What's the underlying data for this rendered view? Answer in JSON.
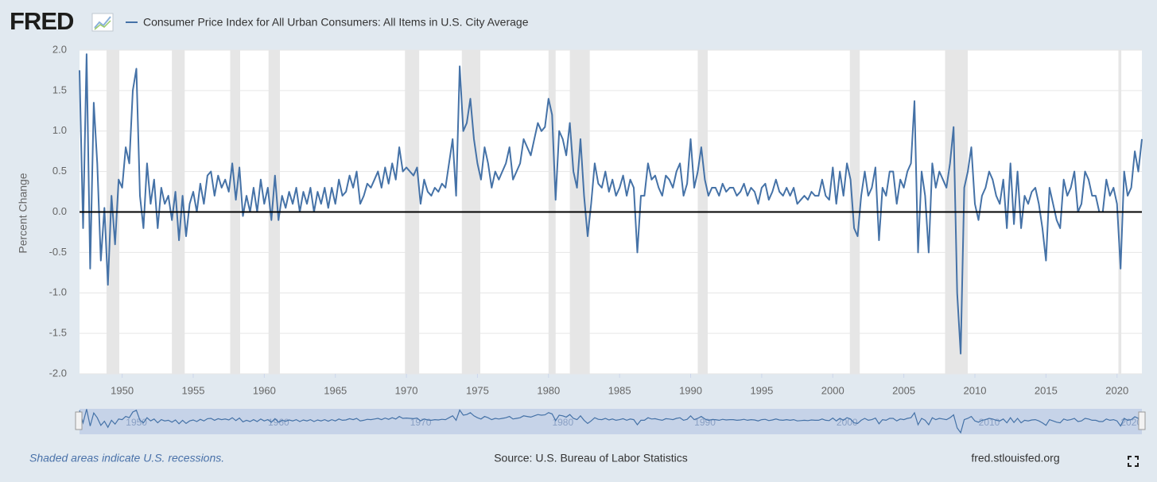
{
  "chart_data": {
    "type": "line",
    "logo": "FRED",
    "title": "Consumer Price Index for All Urban Consumers: All Items in U.S. City Average",
    "y_label": "Percent Change",
    "note": "Shaded areas indicate U.S. recessions.",
    "source": "Source: U.S. Bureau of Labor Statistics",
    "site": "fred.stlouisfed.org",
    "xlim": [
      1947.0,
      2021.75
    ],
    "ylim": [
      -2.0,
      2.0
    ],
    "xticks": [
      1950,
      1955,
      1960,
      1965,
      1970,
      1975,
      1980,
      1985,
      1990,
      1995,
      2000,
      2005,
      2010,
      2015,
      2020
    ],
    "yticks": [
      {
        "value": 2.0,
        "label": "2.0"
      },
      {
        "value": 1.5,
        "label": "1.5"
      },
      {
        "value": 1.0,
        "label": "1.0"
      },
      {
        "value": 0.5,
        "label": "0.5"
      },
      {
        "value": 0,
        "label": "0.0"
      },
      {
        "value": -0.5,
        "label": "-0.5"
      },
      {
        "value": -1.0,
        "label": "-1.0"
      },
      {
        "value": -1.5,
        "label": "-1.5"
      },
      {
        "value": -2.0,
        "label": "-2.0"
      }
    ],
    "grid": true,
    "zero_line": true,
    "recessions": [
      [
        1948.9,
        1949.8
      ],
      [
        1953.5,
        1954.4
      ],
      [
        1957.6,
        1958.3
      ],
      [
        1960.3,
        1961.1
      ],
      [
        1969.9,
        1970.9
      ],
      [
        1973.9,
        1975.2
      ],
      [
        1980.0,
        1980.5
      ],
      [
        1981.5,
        1982.9
      ],
      [
        1990.5,
        1991.2
      ],
      [
        2001.2,
        2001.9
      ],
      [
        2007.9,
        2009.5
      ],
      [
        2020.1,
        2020.3
      ]
    ],
    "recession_color": "#e6e6e6",
    "x": [
      1947.0,
      1947.25,
      1947.5,
      1947.75,
      1948.0,
      1948.25,
      1948.5,
      1948.75,
      1949.0,
      1949.25,
      1949.5,
      1949.75,
      1950.0,
      1950.25,
      1950.5,
      1950.75,
      1951.0,
      1951.25,
      1951.5,
      1951.75,
      1952.0,
      1952.25,
      1952.5,
      1952.75,
      1953.0,
      1953.25,
      1953.5,
      1953.75,
      1954.0,
      1954.25,
      1954.5,
      1954.75,
      1955.0,
      1955.25,
      1955.5,
      1955.75,
      1956.0,
      1956.25,
      1956.5,
      1956.75,
      1957.0,
      1957.25,
      1957.5,
      1957.75,
      1958.0,
      1958.25,
      1958.5,
      1958.75,
      1959.0,
      1959.25,
      1959.5,
      1959.75,
      1960.0,
      1960.25,
      1960.5,
      1960.75,
      1961.0,
      1961.25,
      1961.5,
      1961.75,
      1962.0,
      1962.25,
      1962.5,
      1962.75,
      1963.0,
      1963.25,
      1963.5,
      1963.75,
      1964.0,
      1964.25,
      1964.5,
      1964.75,
      1965.0,
      1965.25,
      1965.5,
      1965.75,
      1966.0,
      1966.25,
      1966.5,
      1966.75,
      1967.0,
      1967.25,
      1967.5,
      1967.75,
      1968.0,
      1968.25,
      1968.5,
      1968.75,
      1969.0,
      1969.25,
      1969.5,
      1969.75,
      1970.0,
      1970.25,
      1970.5,
      1970.75,
      1971.0,
      1971.25,
      1971.5,
      1971.75,
      1972.0,
      1972.25,
      1972.5,
      1972.75,
      1973.0,
      1973.25,
      1973.5,
      1973.75,
      1974.0,
      1974.25,
      1974.5,
      1974.75,
      1975.0,
      1975.25,
      1975.5,
      1975.75,
      1976.0,
      1976.25,
      1976.5,
      1976.75,
      1977.0,
      1977.25,
      1977.5,
      1977.75,
      1978.0,
      1978.25,
      1978.5,
      1978.75,
      1979.0,
      1979.25,
      1979.5,
      1979.75,
      1980.0,
      1980.25,
      1980.5,
      1980.75,
      1981.0,
      1981.25,
      1981.5,
      1981.75,
      1982.0,
      1982.25,
      1982.5,
      1982.75,
      1983.0,
      1983.25,
      1983.5,
      1983.75,
      1984.0,
      1984.25,
      1984.5,
      1984.75,
      1985.0,
      1985.25,
      1985.5,
      1985.75,
      1986.0,
      1986.25,
      1986.5,
      1986.75,
      1987.0,
      1987.25,
      1987.5,
      1987.75,
      1988.0,
      1988.25,
      1988.5,
      1988.75,
      1989.0,
      1989.25,
      1989.5,
      1989.75,
      1990.0,
      1990.25,
      1990.5,
      1990.75,
      1991.0,
      1991.25,
      1991.5,
      1991.75,
      1992.0,
      1992.25,
      1992.5,
      1992.75,
      1993.0,
      1993.25,
      1993.5,
      1993.75,
      1994.0,
      1994.25,
      1994.5,
      1994.75,
      1995.0,
      1995.25,
      1995.5,
      1995.75,
      1996.0,
      1996.25,
      1996.5,
      1996.75,
      1997.0,
      1997.25,
      1997.5,
      1997.75,
      1998.0,
      1998.25,
      1998.5,
      1998.75,
      1999.0,
      1999.25,
      1999.5,
      1999.75,
      2000.0,
      2000.25,
      2000.5,
      2000.75,
      2001.0,
      2001.25,
      2001.5,
      2001.75,
      2002.0,
      2002.25,
      2002.5,
      2002.75,
      2003.0,
      2003.25,
      2003.5,
      2003.75,
      2004.0,
      2004.25,
      2004.5,
      2004.75,
      2005.0,
      2005.25,
      2005.5,
      2005.75,
      2006.0,
      2006.25,
      2006.5,
      2006.75,
      2007.0,
      2007.25,
      2007.5,
      2007.75,
      2008.0,
      2008.25,
      2008.5,
      2008.75,
      2009.0,
      2009.25,
      2009.5,
      2009.75,
      2010.0,
      2010.25,
      2010.5,
      2010.75,
      2011.0,
      2011.25,
      2011.5,
      2011.75,
      2012.0,
      2012.25,
      2012.5,
      2012.75,
      2013.0,
      2013.25,
      2013.5,
      2013.75,
      2014.0,
      2014.25,
      2014.5,
      2014.75,
      2015.0,
      2015.25,
      2015.5,
      2015.75,
      2016.0,
      2016.25,
      2016.5,
      2016.75,
      2017.0,
      2017.25,
      2017.5,
      2017.75,
      2018.0,
      2018.25,
      2018.5,
      2018.75,
      2019.0,
      2019.25,
      2019.5,
      2019.75,
      2020.0,
      2020.25,
      2020.5,
      2020.75,
      2021.0,
      2021.25,
      2021.5,
      2021.75
    ],
    "series": [
      {
        "name": "Consumer Price Index for All Urban Consumers: All Items in U.S. City Average",
        "color": "#4572a7",
        "values": [
          1.75,
          -0.2,
          1.95,
          -0.7,
          1.35,
          0.6,
          -0.6,
          0.05,
          -0.9,
          0.2,
          -0.4,
          0.4,
          0.3,
          0.8,
          0.6,
          1.5,
          1.77,
          0.2,
          -0.2,
          0.6,
          0.1,
          0.4,
          -0.2,
          0.3,
          0.1,
          0.2,
          -0.1,
          0.25,
          -0.35,
          0.2,
          -0.3,
          0.1,
          0.25,
          0.0,
          0.35,
          0.1,
          0.45,
          0.5,
          0.2,
          0.45,
          0.3,
          0.4,
          0.25,
          0.6,
          0.15,
          0.55,
          -0.05,
          0.2,
          0.0,
          0.3,
          0.0,
          0.4,
          0.1,
          0.3,
          -0.1,
          0.45,
          -0.1,
          0.2,
          0.05,
          0.25,
          0.1,
          0.3,
          0.0,
          0.25,
          0.1,
          0.3,
          0.0,
          0.25,
          0.1,
          0.3,
          0.05,
          0.3,
          0.1,
          0.4,
          0.2,
          0.25,
          0.45,
          0.3,
          0.5,
          0.1,
          0.2,
          0.35,
          0.3,
          0.4,
          0.5,
          0.3,
          0.55,
          0.35,
          0.6,
          0.4,
          0.8,
          0.5,
          0.55,
          0.5,
          0.45,
          0.55,
          0.1,
          0.4,
          0.25,
          0.2,
          0.3,
          0.25,
          0.35,
          0.3,
          0.6,
          0.9,
          0.2,
          1.8,
          1.0,
          1.1,
          1.4,
          0.9,
          0.6,
          0.4,
          0.8,
          0.6,
          0.3,
          0.5,
          0.4,
          0.5,
          0.6,
          0.8,
          0.4,
          0.5,
          0.6,
          0.9,
          0.8,
          0.7,
          0.9,
          1.1,
          1.0,
          1.05,
          1.4,
          1.2,
          0.15,
          1.0,
          0.9,
          0.7,
          1.1,
          0.5,
          0.3,
          0.9,
          0.2,
          -0.3,
          0.1,
          0.6,
          0.35,
          0.3,
          0.5,
          0.25,
          0.4,
          0.2,
          0.3,
          0.45,
          0.2,
          0.4,
          0.3,
          -0.5,
          0.2,
          0.2,
          0.6,
          0.4,
          0.45,
          0.3,
          0.2,
          0.45,
          0.4,
          0.3,
          0.5,
          0.6,
          0.2,
          0.35,
          0.9,
          0.3,
          0.5,
          0.8,
          0.4,
          0.2,
          0.3,
          0.3,
          0.2,
          0.35,
          0.25,
          0.3,
          0.3,
          0.2,
          0.25,
          0.35,
          0.2,
          0.3,
          0.25,
          0.1,
          0.3,
          0.35,
          0.15,
          0.25,
          0.4,
          0.25,
          0.2,
          0.3,
          0.2,
          0.3,
          0.1,
          0.15,
          0.2,
          0.15,
          0.25,
          0.2,
          0.2,
          0.4,
          0.2,
          0.15,
          0.55,
          0.1,
          0.5,
          0.2,
          0.6,
          0.4,
          -0.2,
          -0.3,
          0.2,
          0.5,
          0.2,
          0.3,
          0.55,
          -0.35,
          0.3,
          0.2,
          0.5,
          0.5,
          0.1,
          0.4,
          0.3,
          0.5,
          0.6,
          1.37,
          -0.5,
          0.5,
          0.2,
          -0.5,
          0.6,
          0.3,
          0.5,
          0.4,
          0.3,
          0.6,
          1.05,
          -1.0,
          -1.75,
          0.3,
          0.5,
          0.8,
          0.1,
          -0.1,
          0.2,
          0.3,
          0.5,
          0.4,
          0.2,
          0.1,
          0.4,
          -0.2,
          0.6,
          -0.15,
          0.5,
          -0.2,
          0.2,
          0.1,
          0.25,
          0.3,
          0.1,
          -0.2,
          -0.6,
          0.3,
          0.1,
          -0.1,
          -0.2,
          0.4,
          0.2,
          0.3,
          0.5,
          0.0,
          0.1,
          0.5,
          0.4,
          0.2,
          0.2,
          0.0,
          0.0,
          0.4,
          0.2,
          0.3,
          0.1,
          -0.7,
          0.5,
          0.2,
          0.3,
          0.75,
          0.5,
          0.9
        ]
      }
    ]
  }
}
